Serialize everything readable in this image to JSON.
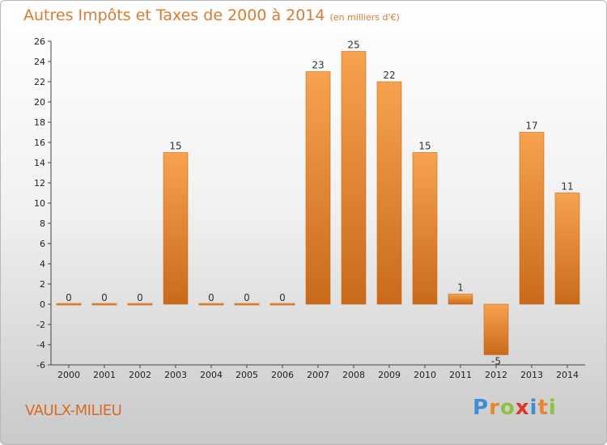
{
  "header": {
    "title": "Autres Impôts et Taxes de 2000 à 2014",
    "unit": "(en milliers d'€)"
  },
  "footer": {
    "commune": "VAULX-MILIEU",
    "brand": [
      "P",
      "r",
      "o",
      "x",
      "i",
      "t",
      "i"
    ]
  },
  "colors": {
    "bar_light": "#f7a24f",
    "bar_dark": "#c96a1a",
    "title": "#e07a2e",
    "brand": [
      "#3b8fd6",
      "#e8862e",
      "#8ac43f",
      "#e0352b",
      "#3b8fd6",
      "#e8862e",
      "#8ac43f"
    ]
  },
  "chart_data": {
    "type": "bar",
    "title": "Autres Impôts et Taxes de 2000 à 2014",
    "subtitle": "(en milliers d'€)",
    "categories": [
      "2000",
      "2001",
      "2002",
      "2003",
      "2004",
      "2005",
      "2006",
      "2007",
      "2008",
      "2009",
      "2010",
      "2011",
      "2012",
      "2013",
      "2014"
    ],
    "values": [
      0,
      0,
      0,
      15,
      0,
      0,
      0,
      23,
      25,
      22,
      15,
      1,
      -5,
      17,
      11
    ],
    "data_labels": [
      "0",
      "0",
      "0",
      "15",
      "0",
      "0",
      "0",
      "23",
      "25",
      "22",
      "15",
      "1",
      "-5",
      "17",
      "11"
    ],
    "ylim": [
      -6,
      26
    ],
    "yticks": [
      -6,
      -4,
      -2,
      0,
      2,
      4,
      6,
      8,
      10,
      12,
      14,
      16,
      18,
      20,
      22,
      24,
      26
    ],
    "grid": false
  }
}
